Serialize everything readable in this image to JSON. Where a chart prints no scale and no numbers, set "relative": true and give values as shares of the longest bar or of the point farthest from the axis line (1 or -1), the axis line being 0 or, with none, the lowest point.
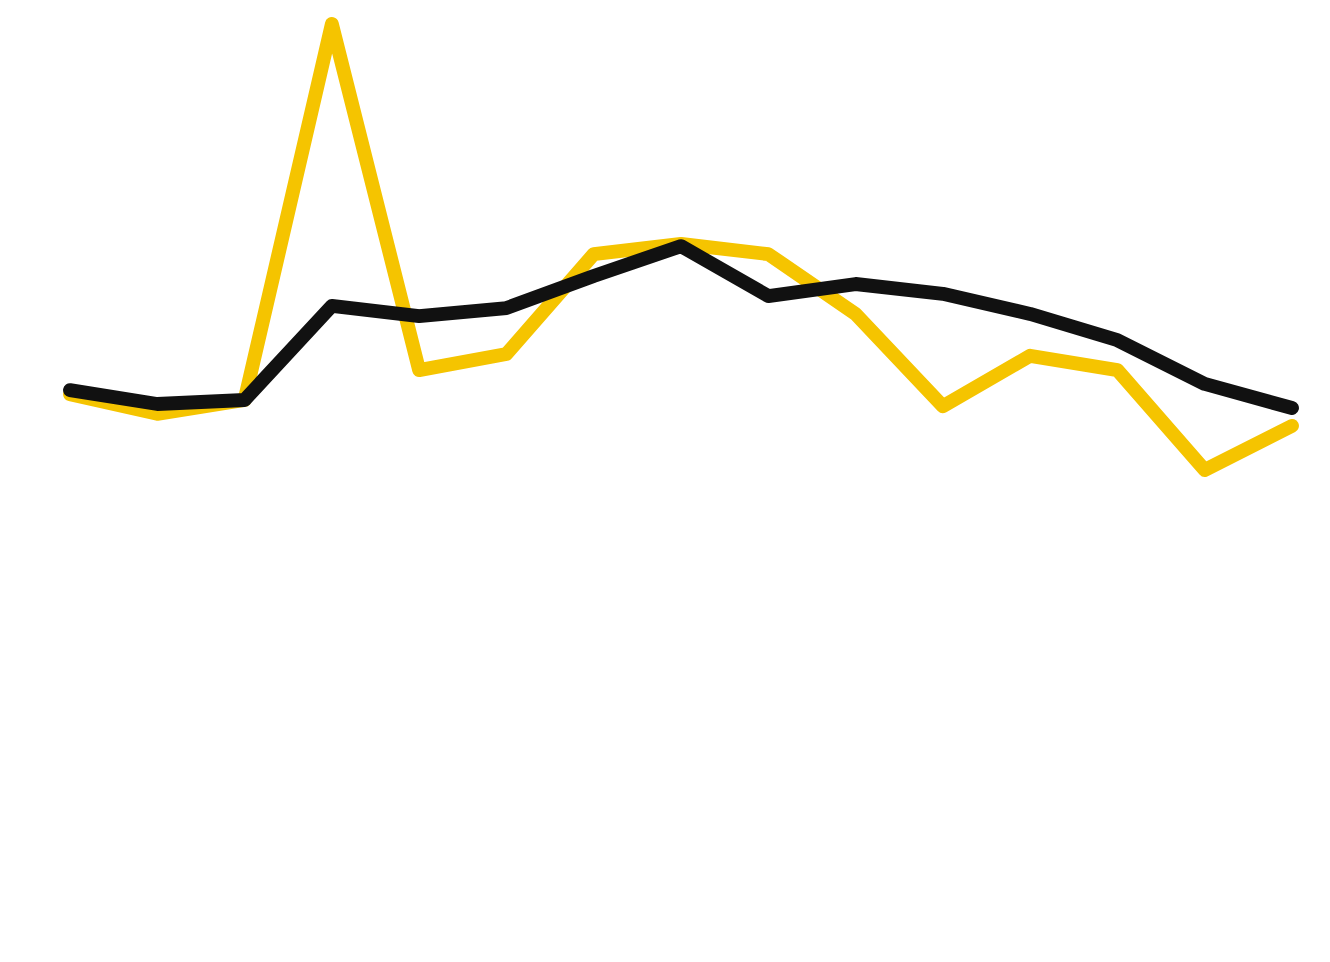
{
  "chart_data": {
    "type": "line",
    "relative": true,
    "categories": [
      null,
      null,
      null,
      null,
      null,
      null,
      null,
      null,
      null,
      null,
      null,
      null,
      null,
      null,
      null
    ],
    "series": [
      {
        "color": "#f5c400",
        "values": [
          0.17,
          0.126,
          0.157,
          1,
          0.224,
          0.26,
          0.484,
          0.507,
          0.484,
          0.35,
          0.143,
          0.256,
          0.224,
          0,
          0.099
        ]
      },
      {
        "color": "#111111",
        "values": [
          0.179,
          0.148,
          0.157,
          0.368,
          0.345,
          0.363,
          0.435,
          0.502,
          0.39,
          0.417,
          0.395,
          0.35,
          0.291,
          0.193,
          0.139
        ]
      }
    ],
    "grid": false,
    "line_style": "solid",
    "marker": "none"
  }
}
